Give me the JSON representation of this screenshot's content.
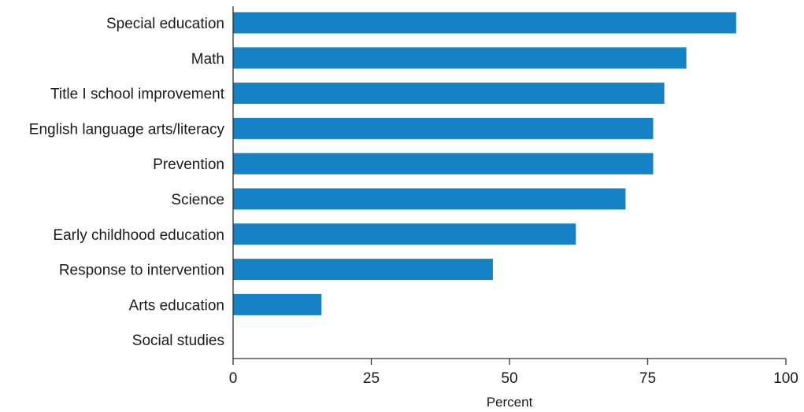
{
  "chart_data": {
    "type": "bar",
    "orientation": "horizontal",
    "categories": [
      "Special education",
      "Math",
      "Title I school improvement",
      "English language arts/literacy",
      "Prevention",
      "Science",
      "Early childhood education",
      "Response to intervention",
      "Arts education",
      "Social studies"
    ],
    "values": [
      91,
      82,
      78,
      76,
      76,
      71,
      62,
      47,
      16,
      0
    ],
    "title": "",
    "xlabel": "Percent",
    "ylabel": "",
    "xlim": [
      0,
      100
    ],
    "xticks": [
      0,
      25,
      50,
      75,
      100
    ],
    "grid": false,
    "legend": "none",
    "bar_color": "#1482c5"
  }
}
